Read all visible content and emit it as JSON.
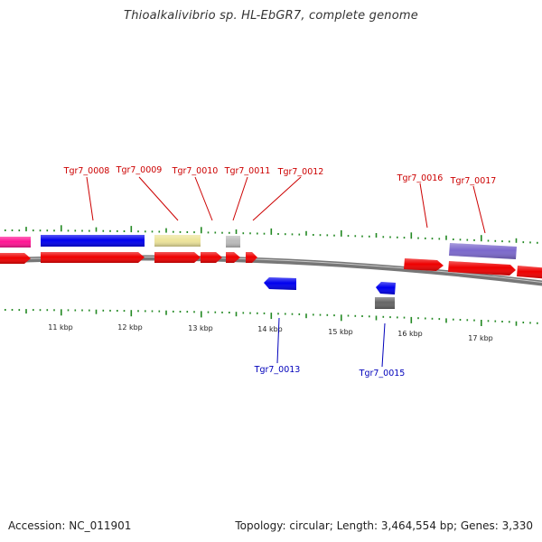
{
  "title": "Thioalkalivibrio sp. HL-EbGR7, complete genome",
  "footer": {
    "accession": "Accession: NC_011901",
    "summary": "Topology: circular; Length: 3,464,554 bp; Genes: 3,330"
  },
  "colors": {
    "backbone": "#777777",
    "tick": "#228822",
    "forward_label": "#cc0000",
    "reverse_label": "#0000bb",
    "cds": "#ee0000",
    "blue_feature": "#0000ee",
    "pink_feature": "#ff1493",
    "khaki_feature": "#ede49a",
    "gray_feature": "#bbbbbb",
    "darkgray_feature": "#666666",
    "purple_feature": "#7b68cc"
  },
  "kbp_labels": [
    {
      "kb": 11,
      "text": "11 kbp"
    },
    {
      "kb": 12,
      "text": "12 kbp"
    },
    {
      "kb": 13,
      "text": "13 kbp"
    },
    {
      "kb": 14,
      "text": "14 kbp"
    },
    {
      "kb": 15,
      "text": "15 kbp"
    },
    {
      "kb": 16,
      "text": "16 kbp"
    },
    {
      "kb": 17,
      "text": "17 kbp"
    }
  ],
  "forward_labels": [
    "Tgr7_0008",
    "Tgr7_0009",
    "Tgr7_0010",
    "Tgr7_0011",
    "Tgr7_0012",
    "Tgr7_0016",
    "Tgr7_0017"
  ],
  "reverse_labels": [
    "Tgr7_0013",
    "Tgr7_0015"
  ]
}
